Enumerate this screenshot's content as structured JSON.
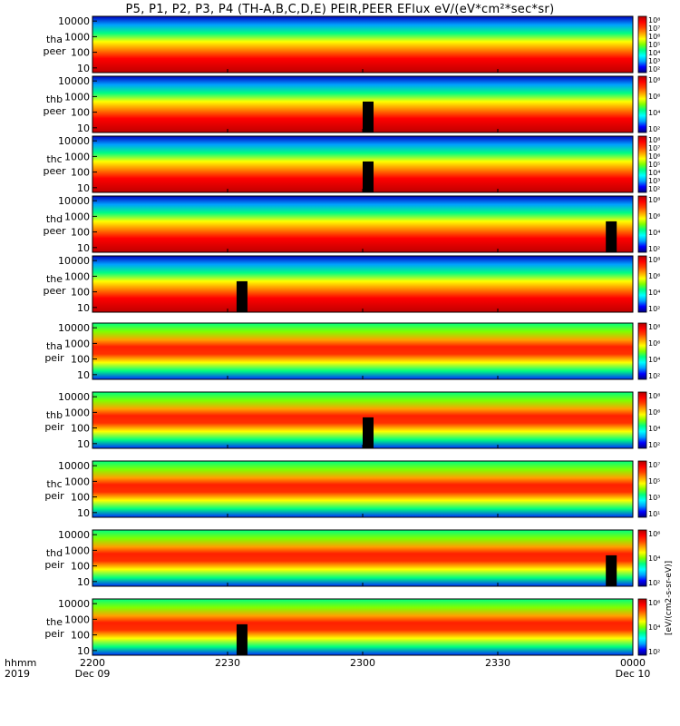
{
  "title": "P5, P1, P2, P3, P4 (TH-A,B,C,D,E) PEIR,PEER EFlux eV/(eV*cm²*sec*sr)",
  "colors": {
    "colormap": [
      "#000080",
      "#0000ff",
      "#00a0ff",
      "#00ffff",
      "#00ff80",
      "#80ff00",
      "#ffff00",
      "#ffa000",
      "#ff4000",
      "#ff0000",
      "#b00000"
    ]
  },
  "chart_data": {
    "type": "heatmap",
    "xaxis": {
      "label_row1": "hhmm",
      "label_row2": "2019",
      "ticks": [
        {
          "t": "2200",
          "d": "Dec 09"
        },
        {
          "t": "2230",
          "d": ""
        },
        {
          "t": "2300",
          "d": ""
        },
        {
          "t": "2330",
          "d": ""
        },
        {
          "t": "0000",
          "d": "Dec 10"
        }
      ],
      "range": [
        "2019-12-09 22:00",
        "2019-12-10 00:00"
      ]
    },
    "yaxis": {
      "scale": "log",
      "range": [
        5,
        20000
      ],
      "ticks": [
        "10",
        "100",
        "1000",
        "10000"
      ]
    },
    "colorbar_label": "[eV/(cm2-s-sr-eV)]",
    "panels": [
      {
        "probe": "tha",
        "species": "peer",
        "cb_ticks": [
          "10²",
          "10³",
          "10⁴",
          "10⁵",
          "10⁶",
          "10⁷",
          "10⁸"
        ],
        "data_gap": null
      },
      {
        "probe": "thb",
        "species": "peer",
        "cb_ticks": [
          "10²",
          "10⁴",
          "10⁶",
          "10⁸"
        ],
        "data_gap": "2300"
      },
      {
        "probe": "thc",
        "species": "peer",
        "cb_ticks": [
          "10²",
          "10³",
          "10⁴",
          "10⁵",
          "10⁶",
          "10⁷",
          "10⁸"
        ],
        "data_gap": "2300"
      },
      {
        "probe": "thd",
        "species": "peer",
        "cb_ticks": [
          "10²",
          "10⁴",
          "10⁶",
          "10⁸"
        ],
        "data_gap": "2354"
      },
      {
        "probe": "the",
        "species": "peer",
        "cb_ticks": [
          "10²",
          "10⁴",
          "10⁶",
          "10⁸"
        ],
        "data_gap": "2232"
      },
      {
        "probe": "tha",
        "species": "peir",
        "cb_ticks": [
          "10²",
          "10⁴",
          "10⁶",
          "10⁸"
        ],
        "data_gap": null
      },
      {
        "probe": "thb",
        "species": "peir",
        "cb_ticks": [
          "10²",
          "10⁴",
          "10⁶",
          "10⁸"
        ],
        "data_gap": "2300"
      },
      {
        "probe": "thc",
        "species": "peir",
        "cb_ticks": [
          "10¹",
          "10³",
          "10⁵",
          "10⁷"
        ],
        "data_gap": null
      },
      {
        "probe": "thd",
        "species": "peir",
        "cb_ticks": [
          "10²",
          "10⁴",
          "10⁶"
        ],
        "data_gap": "2354"
      },
      {
        "probe": "the",
        "species": "peir",
        "cb_ticks": [
          "10²",
          "10⁴",
          "10⁶"
        ],
        "data_gap": "2232"
      }
    ]
  }
}
